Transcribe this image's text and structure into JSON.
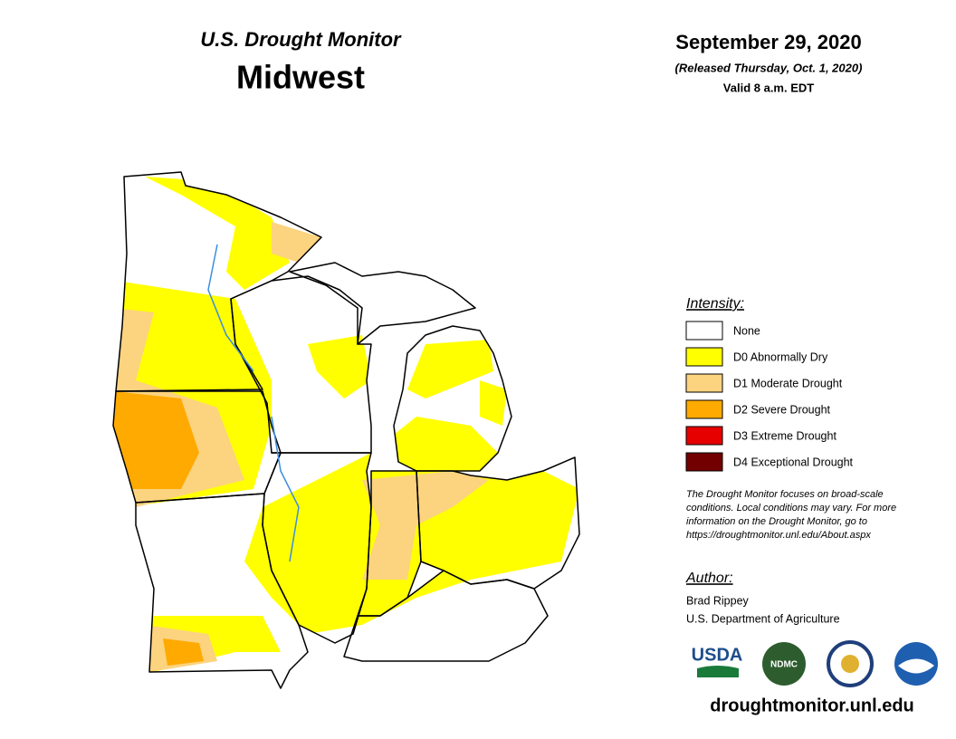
{
  "header": {
    "title": "U.S. Drought Monitor",
    "region": "Midwest",
    "date": "September 29, 2020",
    "released": "(Released Thursday, Oct. 1, 2020)",
    "valid": "Valid 8 a.m. EDT"
  },
  "legend": {
    "title": "Intensity:",
    "items": [
      {
        "label": "None",
        "color": "#ffffff"
      },
      {
        "label": "D0 Abnormally Dry",
        "color": "#ffff00"
      },
      {
        "label": "D1 Moderate Drought",
        "color": "#fcd37f"
      },
      {
        "label": "D2 Severe Drought",
        "color": "#ffaa00"
      },
      {
        "label": "D3 Extreme Drought",
        "color": "#e60000"
      },
      {
        "label": "D4 Exceptional Drought",
        "color": "#730000"
      }
    ]
  },
  "note": [
    "The Drought Monitor focuses on broad-scale",
    "conditions. Local conditions may vary. For more",
    "information on the Drought Monitor, go to",
    "https://droughtmonitor.unl.edu/About.aspx"
  ],
  "author": {
    "heading": "Author:",
    "name": "Brad Rippey",
    "agency": "U.S. Department of Agriculture"
  },
  "logos": [
    "USDA",
    "NDMC"
  ],
  "url": "droughtmonitor.unl.edu"
}
